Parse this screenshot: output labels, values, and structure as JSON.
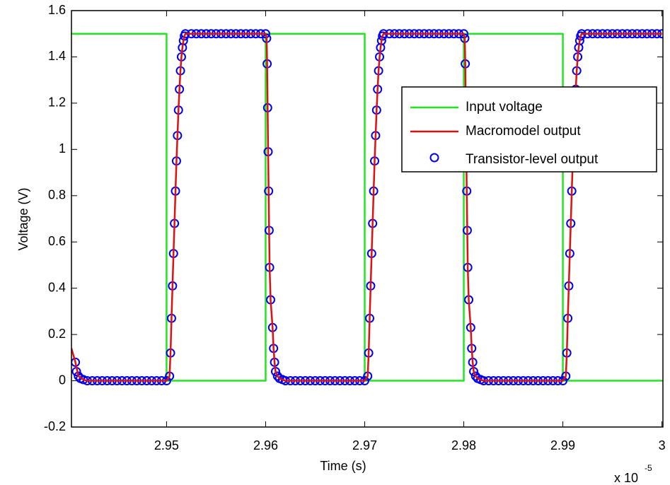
{
  "chart_data": {
    "type": "line",
    "xlabel": "Time (s)",
    "ylabel": "Voltage (V)",
    "x_multiplier": "x 10",
    "x_exponent": "-5",
    "xlim": [
      2.9404,
      3.0001
    ],
    "xticks": [
      2.95,
      2.96,
      2.97,
      2.98,
      2.99,
      3
    ],
    "ylim": [
      -0.2,
      1.6
    ],
    "yticks": [
      -0.2,
      0,
      0.2,
      0.4,
      0.6,
      0.8,
      1,
      1.2,
      1.4,
      1.6
    ],
    "grid": false,
    "legend": "upper right",
    "series": [
      {
        "name": "Input voltage",
        "color": "#22e622",
        "style": "lines",
        "x": [
          2.9404,
          2.95,
          2.95,
          2.96,
          2.96,
          2.97,
          2.97,
          2.98,
          2.98,
          2.99,
          2.99,
          3
        ],
        "values": [
          1.5,
          1.5,
          0,
          0,
          1.5,
          1.5,
          0,
          0,
          1.5,
          1.5,
          0,
          0
        ]
      },
      {
        "name": "Macromodel output",
        "color": "#e01010",
        "style": "lines",
        "x": [
          2.9404,
          2.9408,
          2.9411,
          2.9416,
          2.942,
          2.95,
          2.9503,
          2.9504,
          2.9505,
          2.9506,
          2.9507,
          2.9508,
          2.9509,
          2.951,
          2.9511,
          2.9512,
          2.9513,
          2.9514,
          2.9515,
          2.9516,
          2.9517,
          2.9518,
          2.9519,
          2.96,
          2.9601,
          2.96015,
          2.9602,
          2.96025,
          2.9603,
          2.96035,
          2.9604,
          2.9605,
          2.9607,
          2.9608,
          2.9609,
          2.961,
          2.9612,
          2.9614,
          2.9617,
          2.962,
          2.97,
          2.9703,
          2.9704,
          2.9705,
          2.9706,
          2.9707,
          2.9708,
          2.9709,
          2.971,
          2.9711,
          2.9712,
          2.9713,
          2.9714,
          2.9715,
          2.9716,
          2.9717,
          2.9718,
          2.9719,
          2.98,
          2.9801,
          2.98015,
          2.9802,
          2.98025,
          2.9803,
          2.98035,
          2.9804,
          2.9805,
          2.9807,
          2.9808,
          2.9809,
          2.981,
          2.9812,
          2.9814,
          2.9817,
          2.982,
          2.99,
          2.9903,
          2.9904,
          2.9905,
          2.9906,
          2.9907,
          2.9908,
          2.9909,
          2.991,
          2.9911,
          2.9912,
          2.9913,
          2.9914,
          2.9915,
          2.9916,
          2.9917,
          2.9918,
          2.9919,
          3
        ],
        "values": [
          0.14,
          0.08,
          0.02,
          0.005,
          0,
          0,
          0.02,
          0.12,
          0.27,
          0.41,
          0.55,
          0.68,
          0.82,
          0.95,
          1.06,
          1.17,
          1.26,
          1.34,
          1.4,
          1.44,
          1.47,
          1.49,
          1.5,
          1.5,
          1.48,
          1.37,
          1.18,
          0.99,
          0.82,
          0.65,
          0.49,
          0.35,
          0.23,
          0.14,
          0.08,
          0.04,
          0.02,
          0.01,
          0.005,
          0,
          0,
          0.02,
          0.12,
          0.27,
          0.41,
          0.55,
          0.68,
          0.82,
          0.95,
          1.06,
          1.17,
          1.26,
          1.34,
          1.4,
          1.44,
          1.47,
          1.49,
          1.5,
          1.5,
          1.48,
          1.37,
          1.18,
          0.99,
          0.82,
          0.65,
          0.49,
          0.35,
          0.23,
          0.14,
          0.08,
          0.04,
          0.02,
          0.01,
          0.005,
          0,
          0,
          0.02,
          0.12,
          0.27,
          0.41,
          0.55,
          0.68,
          0.82,
          0.95,
          1.06,
          1.17,
          1.26,
          1.34,
          1.4,
          1.44,
          1.47,
          1.49,
          1.5,
          1.5
        ]
      },
      {
        "name": "Transistor-level output",
        "color": "#0000ee",
        "style": "markers",
        "x": [
          2.9408,
          2.9409,
          2.9411,
          2.9413,
          2.9416,
          2.942,
          2.9425,
          2.943,
          2.9435,
          2.944,
          2.9445,
          2.945,
          2.9455,
          2.946,
          2.9465,
          2.947,
          2.9475,
          2.948,
          2.9485,
          2.949,
          2.9495,
          2.95,
          2.9503,
          2.9504,
          2.9505,
          2.9506,
          2.9507,
          2.9508,
          2.9509,
          2.951,
          2.9511,
          2.9512,
          2.9513,
          2.9514,
          2.9515,
          2.9516,
          2.9517,
          2.9518,
          2.9519,
          2.9525,
          2.953,
          2.9535,
          2.954,
          2.9545,
          2.955,
          2.9555,
          2.956,
          2.9565,
          2.957,
          2.9575,
          2.958,
          2.9585,
          2.959,
          2.9595,
          2.96,
          2.9601,
          2.96015,
          2.9602,
          2.96025,
          2.9603,
          2.96035,
          2.9604,
          2.9605,
          2.9607,
          2.9608,
          2.9609,
          2.961,
          2.9612,
          2.9614,
          2.9617,
          2.962,
          2.9625,
          2.963,
          2.9635,
          2.964,
          2.9645,
          2.965,
          2.9655,
          2.966,
          2.9665,
          2.967,
          2.9675,
          2.968,
          2.9685,
          2.969,
          2.9695,
          2.97,
          2.9703,
          2.9704,
          2.9705,
          2.9706,
          2.9707,
          2.9708,
          2.9709,
          2.971,
          2.9711,
          2.9712,
          2.9713,
          2.9714,
          2.9715,
          2.9716,
          2.9717,
          2.9718,
          2.9719,
          2.9725,
          2.973,
          2.9735,
          2.974,
          2.9745,
          2.975,
          2.9755,
          2.976,
          2.9765,
          2.977,
          2.9775,
          2.978,
          2.9785,
          2.979,
          2.9795,
          2.98,
          2.9801,
          2.98015,
          2.9802,
          2.98025,
          2.9803,
          2.98035,
          2.9804,
          2.9805,
          2.9807,
          2.9808,
          2.9809,
          2.981,
          2.9812,
          2.9814,
          2.9817,
          2.982,
          2.9825,
          2.983,
          2.9835,
          2.984,
          2.9845,
          2.985,
          2.9855,
          2.986,
          2.9865,
          2.987,
          2.9875,
          2.988,
          2.9885,
          2.989,
          2.9895,
          2.99,
          2.9903,
          2.9904,
          2.9905,
          2.9906,
          2.9907,
          2.9908,
          2.9909,
          2.991,
          2.9911,
          2.9912,
          2.9913,
          2.9914,
          2.9915,
          2.9916,
          2.9917,
          2.9918,
          2.9919,
          2.9925,
          2.993,
          2.9935,
          2.994,
          2.9945,
          2.995,
          2.9955,
          2.996,
          2.9965,
          2.997,
          2.9975,
          2.998,
          2.9985,
          2.999,
          2.9995,
          3
        ],
        "values": [
          0.08,
          0.04,
          0.02,
          0.01,
          0.005,
          0,
          0,
          0,
          0,
          0,
          0,
          0,
          0,
          0,
          0,
          0,
          0,
          0,
          0,
          0,
          0,
          0,
          0.02,
          0.12,
          0.27,
          0.41,
          0.55,
          0.68,
          0.82,
          0.95,
          1.06,
          1.17,
          1.26,
          1.34,
          1.4,
          1.44,
          1.47,
          1.49,
          1.5,
          1.5,
          1.5,
          1.5,
          1.5,
          1.5,
          1.5,
          1.5,
          1.5,
          1.5,
          1.5,
          1.5,
          1.5,
          1.5,
          1.5,
          1.5,
          1.5,
          1.48,
          1.37,
          1.18,
          0.99,
          0.82,
          0.65,
          0.49,
          0.35,
          0.23,
          0.14,
          0.08,
          0.04,
          0.02,
          0.01,
          0.005,
          0,
          0,
          0,
          0,
          0,
          0,
          0,
          0,
          0,
          0,
          0,
          0,
          0,
          0,
          0,
          0,
          0,
          0.02,
          0.12,
          0.27,
          0.41,
          0.55,
          0.68,
          0.82,
          0.95,
          1.06,
          1.17,
          1.26,
          1.34,
          1.4,
          1.44,
          1.47,
          1.49,
          1.5,
          1.5,
          1.5,
          1.5,
          1.5,
          1.5,
          1.5,
          1.5,
          1.5,
          1.5,
          1.5,
          1.5,
          1.5,
          1.5,
          1.5,
          1.5,
          1.5,
          1.48,
          1.37,
          1.18,
          0.99,
          0.82,
          0.65,
          0.49,
          0.35,
          0.23,
          0.14,
          0.08,
          0.04,
          0.02,
          0.01,
          0.005,
          0,
          0,
          0,
          0,
          0,
          0,
          0,
          0,
          0,
          0,
          0,
          0,
          0,
          0,
          0,
          0,
          0,
          0.02,
          0.12,
          0.27,
          0.41,
          0.55,
          0.68,
          0.82,
          0.95,
          1.06,
          1.17,
          1.26,
          1.34,
          1.4,
          1.44,
          1.47,
          1.49,
          1.5,
          1.5,
          1.5,
          1.5,
          1.5,
          1.5,
          1.5,
          1.5,
          1.5,
          1.5,
          1.5,
          1.5,
          1.5,
          1.5,
          1.5,
          1.5,
          1.5
        ]
      }
    ]
  }
}
